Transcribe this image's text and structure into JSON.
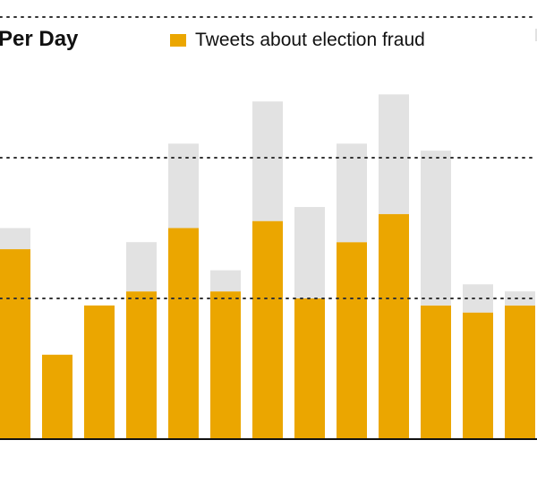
{
  "chart_data": {
    "type": "bar",
    "stacked": true,
    "title": "Per Day",
    "colors": {
      "fraud": "#eba600",
      "other": "#e2e2e2",
      "gridline": "#333333",
      "axis": "#111111"
    },
    "legend": [
      {
        "name": "Tweets about election fraud",
        "color": "#eba600"
      },
      {
        "name": "",
        "color": "#e2e2e2"
      }
    ],
    "gridlines": [
      1,
      2,
      3
    ],
    "ylim": [
      0,
      3
    ],
    "series": [
      {
        "name": "Tweets about election fraud",
        "values": [
          1.35,
          0.6,
          0.95,
          1.05,
          1.5,
          1.05,
          1.55,
          1.0,
          1.4,
          1.6,
          0.95,
          0.9,
          0.95
        ]
      },
      {
        "name": "",
        "values": [
          0.15,
          0.0,
          0.0,
          0.35,
          0.6,
          0.15,
          0.85,
          0.65,
          0.7,
          0.85,
          1.1,
          0.2,
          0.1
        ]
      }
    ]
  }
}
